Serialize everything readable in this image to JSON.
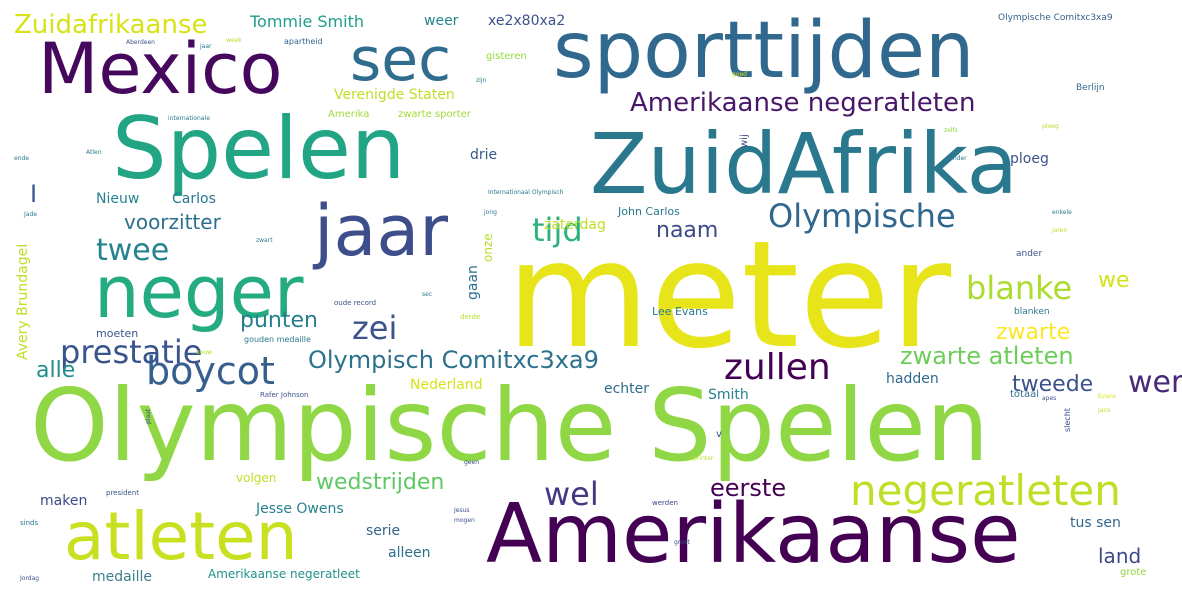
{
  "words": [
    {
      "text": "meter",
      "color": "#e7e419"
    },
    {
      "text": "Olympische Spelen",
      "color": "#8fd744"
    },
    {
      "text": "ZuidAfrika",
      "color": "#2a788e"
    },
    {
      "text": "sporttijden",
      "color": "#30688e"
    },
    {
      "text": "Spelen",
      "color": "#21a585"
    },
    {
      "text": "Amerikaanse",
      "color": "#440154"
    },
    {
      "text": "Mexico",
      "color": "#46085c"
    },
    {
      "text": "neger",
      "color": "#25ab82"
    },
    {
      "text": "jaar",
      "color": "#3d4e8a"
    },
    {
      "text": "atleten",
      "color": "#c8e020"
    },
    {
      "text": "sec",
      "color": "#2f6c8e"
    },
    {
      "text": "negeratleten",
      "color": "#bddf26"
    },
    {
      "text": "Olympische",
      "color": "#31668e"
    },
    {
      "text": "Amerikaanse negeratleten",
      "color": "#481769"
    },
    {
      "text": "boycot",
      "color": "#355f8d"
    },
    {
      "text": "zullen",
      "color": "#440154"
    },
    {
      "text": "wereldrecord",
      "color": "#482878"
    },
    {
      "text": "blanke",
      "color": "#addc30"
    },
    {
      "text": "prestatie",
      "color": "#39558c"
    },
    {
      "text": "tijd",
      "color": "#2db27d"
    },
    {
      "text": "Zuidafrikaanse",
      "color": "#d8e219"
    },
    {
      "text": "Olympisch Comitxc3xa9",
      "color": "#2c728e"
    },
    {
      "text": "twee",
      "color": "#26828e"
    },
    {
      "text": "zei",
      "color": "#3b528b"
    },
    {
      "text": "wel",
      "color": "#453781"
    },
    {
      "text": "eerste",
      "color": "#440154"
    },
    {
      "text": "zwarte atleten",
      "color": "#6ccd5a"
    },
    {
      "text": "zwarte",
      "color": "#fde725"
    },
    {
      "text": "punten",
      "color": "#277f8e"
    },
    {
      "text": "naam",
      "color": "#3e4989"
    },
    {
      "text": "voorzitter",
      "color": "#2d708e"
    },
    {
      "text": "alle",
      "color": "#218e8d"
    },
    {
      "text": "tweede",
      "color": "#3b528b"
    },
    {
      "text": "wedstrijden",
      "color": "#5ec962"
    },
    {
      "text": "land",
      "color": "#3e4a89"
    },
    {
      "text": "we",
      "color": "#d2e21b"
    },
    {
      "text": "I",
      "color": "#38588c"
    },
    {
      "text": "Tommie Smith",
      "color": "#1f9e89"
    },
    {
      "text": "Verenigde Staten",
      "color": "#bddf26"
    },
    {
      "text": "weer",
      "color": "#25838e"
    },
    {
      "text": "xe2x80xa2",
      "color": "#3b528b"
    },
    {
      "text": "ploeg",
      "color": "#3b528b"
    },
    {
      "text": "drie",
      "color": "#38588c"
    },
    {
      "text": "Nieuw",
      "color": "#26828e"
    },
    {
      "text": "Carlos",
      "color": "#2a768e"
    },
    {
      "text": "zaterdag",
      "color": "#bddf26"
    },
    {
      "text": "John Carlos",
      "color": "#2a788e"
    },
    {
      "text": "Avery BrundageI",
      "color": "#bddf26"
    },
    {
      "text": "gaan",
      "color": "#2d708e"
    },
    {
      "text": "onze",
      "color": "#b5de2b"
    },
    {
      "text": "Nederland",
      "color": "#d8e219"
    },
    {
      "text": "echter",
      "color": "#2f6c8e"
    },
    {
      "text": "Smith",
      "color": "#26828e"
    },
    {
      "text": "hadden",
      "color": "#31688e"
    },
    {
      "text": "Lee Evans",
      "color": "#2a788e"
    },
    {
      "text": "moeten",
      "color": "#3b528b"
    },
    {
      "text": "maken",
      "color": "#3e4a89"
    },
    {
      "text": "volgen",
      "color": "#c2df23"
    },
    {
      "text": "Jesse Owens",
      "color": "#26828e"
    },
    {
      "text": "serie",
      "color": "#33638d"
    },
    {
      "text": "alleen",
      "color": "#2c718e"
    },
    {
      "text": "tus sen",
      "color": "#31668e"
    },
    {
      "text": "medaille",
      "color": "#3b7e8d"
    },
    {
      "text": "Amerikaanse negeratleet",
      "color": "#21918c"
    },
    {
      "text": "grote",
      "color": "#8fd744"
    },
    {
      "text": "totaal",
      "color": "#2e6f8e"
    },
    {
      "text": "v",
      "color": "#3e4a89"
    },
    {
      "text": "gisteren",
      "color": "#95d840"
    },
    {
      "text": "zwarte sporter",
      "color": "#a2da37"
    },
    {
      "text": "Amerika",
      "color": "#9fda3a"
    },
    {
      "text": "Olympische Comitxc3xa9",
      "color": "#355f8d"
    },
    {
      "text": "wij",
      "color": "#3e4a89"
    },
    {
      "text": "Berlijn",
      "color": "#31688e"
    },
    {
      "text": "ander",
      "color": "#3b528b"
    },
    {
      "text": "apartheid",
      "color": "#33638d"
    },
    {
      "text": "gouden medaille",
      "color": "#2a788e"
    },
    {
      "text": "oude record",
      "color": "#3b528b"
    },
    {
      "text": "derde",
      "color": "#b5de2b"
    },
    {
      "text": "slecht",
      "color": "#3e4a89"
    },
    {
      "text": "blanken",
      "color": "#2a788e"
    },
    {
      "text": "president",
      "color": "#3b528b"
    },
    {
      "text": "Rafer Johnson",
      "color": "#3b528b"
    },
    {
      "text": "sinds",
      "color": "#2a788e"
    },
    {
      "text": "werden",
      "color": "#3e4a89"
    },
    {
      "text": "sprinter",
      "color": "#b5de2b"
    },
    {
      "text": "Internationaal Olympisch",
      "color": "#2a788e"
    },
    {
      "text": "zelfs",
      "color": "#8fd744"
    },
    {
      "text": "zwart",
      "color": "#2a788e"
    },
    {
      "text": "goed",
      "color": "#d8e219"
    },
    {
      "text": "enkele",
      "color": "#2a788e"
    },
    {
      "text": "Aberdeen",
      "color": "#3b528b"
    },
    {
      "text": "internationale",
      "color": "#2a788e"
    },
    {
      "text": "eeuw",
      "color": "#b5de2b"
    },
    {
      "text": "jaren",
      "color": "#c2df23"
    },
    {
      "text": "ende",
      "color": "#2a788e"
    },
    {
      "text": "Jordag",
      "color": "#3b528b"
    },
    {
      "text": "zender",
      "color": "#2a788e"
    },
    {
      "text": "mogen",
      "color": "#3b528b"
    },
    {
      "text": "geen",
      "color": "#3b528b"
    },
    {
      "text": "sec",
      "color": "#2a788e"
    },
    {
      "text": "Evans",
      "color": "#d8e219"
    },
    {
      "text": "jong",
      "color": "#2a788e"
    },
    {
      "text": "Jesus",
      "color": "#3b528b"
    },
    {
      "text": "jaar",
      "color": "#2a788e"
    },
    {
      "text": "ploeg",
      "color": "#b5de2b"
    },
    {
      "text": "Jade",
      "color": "#2a788e"
    },
    {
      "text": "Atlen",
      "color": "#2a788e"
    },
    {
      "text": "plaat",
      "color": "#3b528b"
    },
    {
      "text": "apes",
      "color": "#3b528b"
    },
    {
      "text": "Jaco",
      "color": "#c2df23"
    },
    {
      "text": "week",
      "color": "#b5de2b"
    },
    {
      "text": "groot",
      "color": "#3b528b"
    },
    {
      "text": "zijn",
      "color": "#2a788e"
    }
  ]
}
